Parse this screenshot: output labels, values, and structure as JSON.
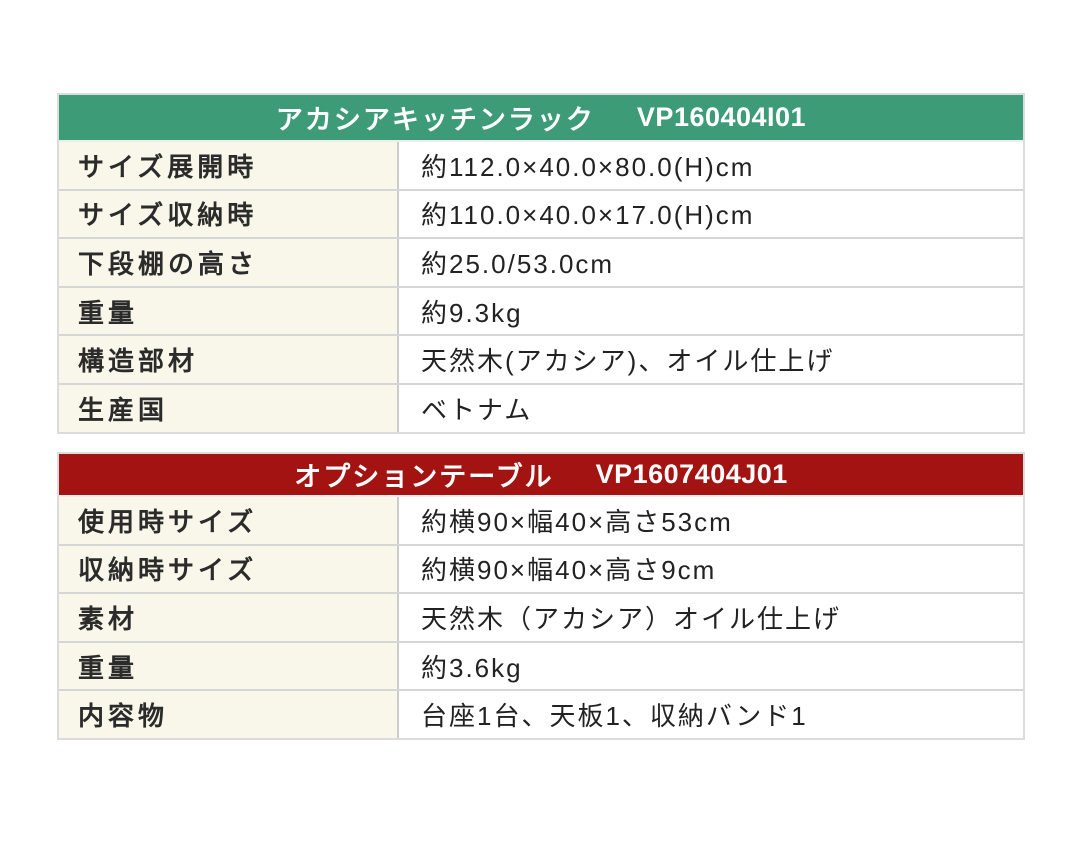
{
  "colors": {
    "table1_header_bg": "#3e9b78",
    "table2_header_bg": "#a31312",
    "label_column_bg": "#f8f7e9",
    "header_text": "#ffffff",
    "body_text": "#2b2b2b",
    "border": "#d6d6d6"
  },
  "tables": [
    {
      "header": {
        "name": "アカシアキッチンラック",
        "code": "VP160404I01"
      },
      "rows": [
        {
          "label": "サイズ展開時",
          "value": "約112.0×40.0×80.0(H)cm"
        },
        {
          "label": "サイズ収納時",
          "value": "約110.0×40.0×17.0(H)cm"
        },
        {
          "label": "下段棚の高さ",
          "value": "約25.0/53.0cm"
        },
        {
          "label": "重量",
          "value": "約9.3kg"
        },
        {
          "label": "構造部材",
          "value": "天然木(アカシア)、オイル仕上げ"
        },
        {
          "label": "生産国",
          "value": "ベトナム"
        }
      ]
    },
    {
      "header": {
        "name": "オプションテーブル",
        "code": "VP1607404J01"
      },
      "rows": [
        {
          "label": "使用時サイズ",
          "value": "約横90×幅40×高さ53cm"
        },
        {
          "label": "収納時サイズ",
          "value": "約横90×幅40×高さ9cm"
        },
        {
          "label": "素材",
          "value": "天然木（アカシア）オイル仕上げ"
        },
        {
          "label": "重量",
          "value": "約3.6kg"
        },
        {
          "label": "内容物",
          "value": "台座1台、天板1、収納バンド1"
        }
      ]
    }
  ]
}
